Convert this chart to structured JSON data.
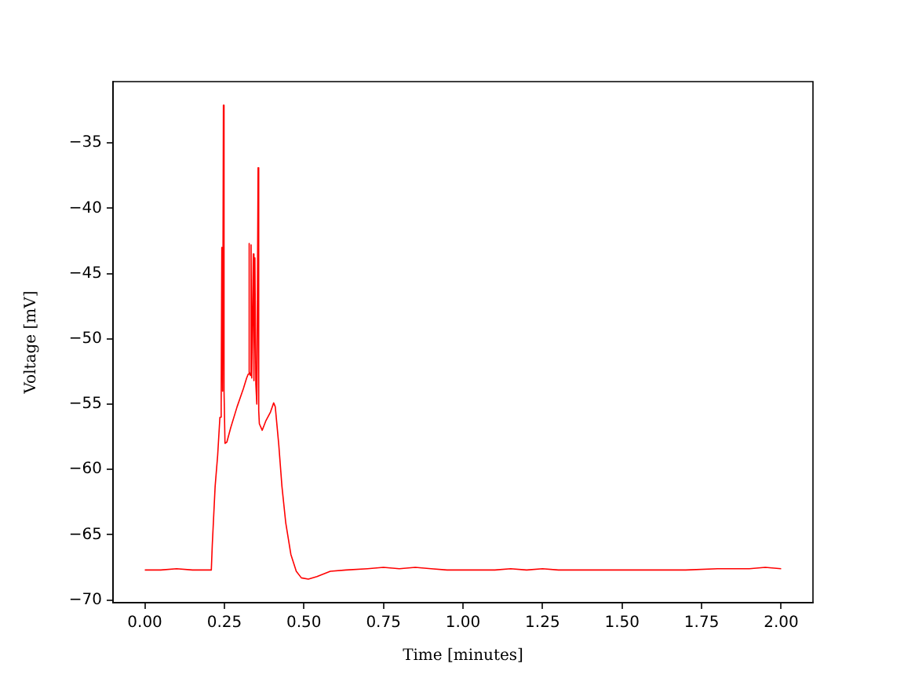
{
  "chart_data": {
    "type": "line",
    "xlabel": "Time [minutes]",
    "ylabel": "Voltage [mV]",
    "color": "#ff0000",
    "x": [
      0,
      0.05,
      0.1,
      0.15,
      0.2,
      0.209,
      0.212,
      0.221,
      0.229,
      0.236,
      0.24,
      0.242,
      0.244,
      0.245,
      0.247,
      0.249,
      0.252,
      0.258,
      0.27,
      0.29,
      0.31,
      0.32,
      0.325,
      0.327,
      0.329,
      0.332,
      0.334,
      0.336,
      0.341,
      0.343,
      0.346,
      0.349,
      0.352,
      0.356,
      0.358,
      0.36,
      0.369,
      0.38,
      0.395,
      0.405,
      0.41,
      0.421,
      0.431,
      0.443,
      0.459,
      0.476,
      0.492,
      0.514,
      0.541,
      0.583,
      0.632,
      0.7,
      0.75,
      0.8,
      0.85,
      0.9,
      0.95,
      1.0,
      1.1,
      1.15,
      1.2,
      1.25,
      1.3,
      1.4,
      1.5,
      1.6,
      1.7,
      1.8,
      1.9,
      1.95,
      2.0
    ],
    "values": [
      -67.7,
      -67.7,
      -67.6,
      -67.7,
      -67.7,
      -67.7,
      -65.8,
      -61.3,
      -58.9,
      -56.0,
      -55.0,
      -43.0,
      -54.0,
      -53.8,
      -32.1,
      -54.0,
      -58.0,
      -57.9,
      -56.8,
      -55.2,
      -53.8,
      -53.0,
      -52.7,
      -42.7,
      -52.5,
      -52.8,
      -42.8,
      -53.0,
      -43.5,
      -53.2,
      -43.8,
      -53.5,
      -55.0,
      -36.9,
      -55.5,
      -56.5,
      -57.0,
      -56.3,
      -55.6,
      -54.9,
      -55.2,
      -58.1,
      -61.3,
      -64.1,
      -66.5,
      -67.8,
      -68.3,
      -68.4,
      -68.2,
      -67.8,
      -67.7,
      -67.6,
      -67.5,
      -67.6,
      -67.5,
      -67.6,
      -67.7,
      -67.7,
      -67.7,
      -67.6,
      -67.7,
      -67.6,
      -67.7,
      -67.7,
      -67.7,
      -67.7,
      -67.7,
      -67.6,
      -67.6,
      -67.5,
      -67.6
    ],
    "xlim": [
      -0.1,
      2.1
    ],
    "ylim": [
      -70.2,
      -30.3
    ],
    "xticks": [
      {
        "value": 0,
        "label": "0.00"
      },
      {
        "value": 0.25,
        "label": "0.25"
      },
      {
        "value": 0.5,
        "label": "0.50"
      },
      {
        "value": 0.75,
        "label": "0.75"
      },
      {
        "value": 1,
        "label": "1.00"
      },
      {
        "value": 1.25,
        "label": "1.25"
      },
      {
        "value": 1.5,
        "label": "1.50"
      },
      {
        "value": 1.75,
        "label": "1.75"
      },
      {
        "value": 2,
        "label": "2.00"
      }
    ],
    "yticks": [
      {
        "value": -70,
        "label": "−70"
      },
      {
        "value": -65,
        "label": "−65"
      },
      {
        "value": -60,
        "label": "−60"
      },
      {
        "value": -55,
        "label": "−55"
      },
      {
        "value": -50,
        "label": "−50"
      },
      {
        "value": -45,
        "label": "−45"
      },
      {
        "value": -40,
        "label": "−40"
      },
      {
        "value": -35,
        "label": "−35"
      }
    ],
    "grid": false,
    "legend": false
  }
}
